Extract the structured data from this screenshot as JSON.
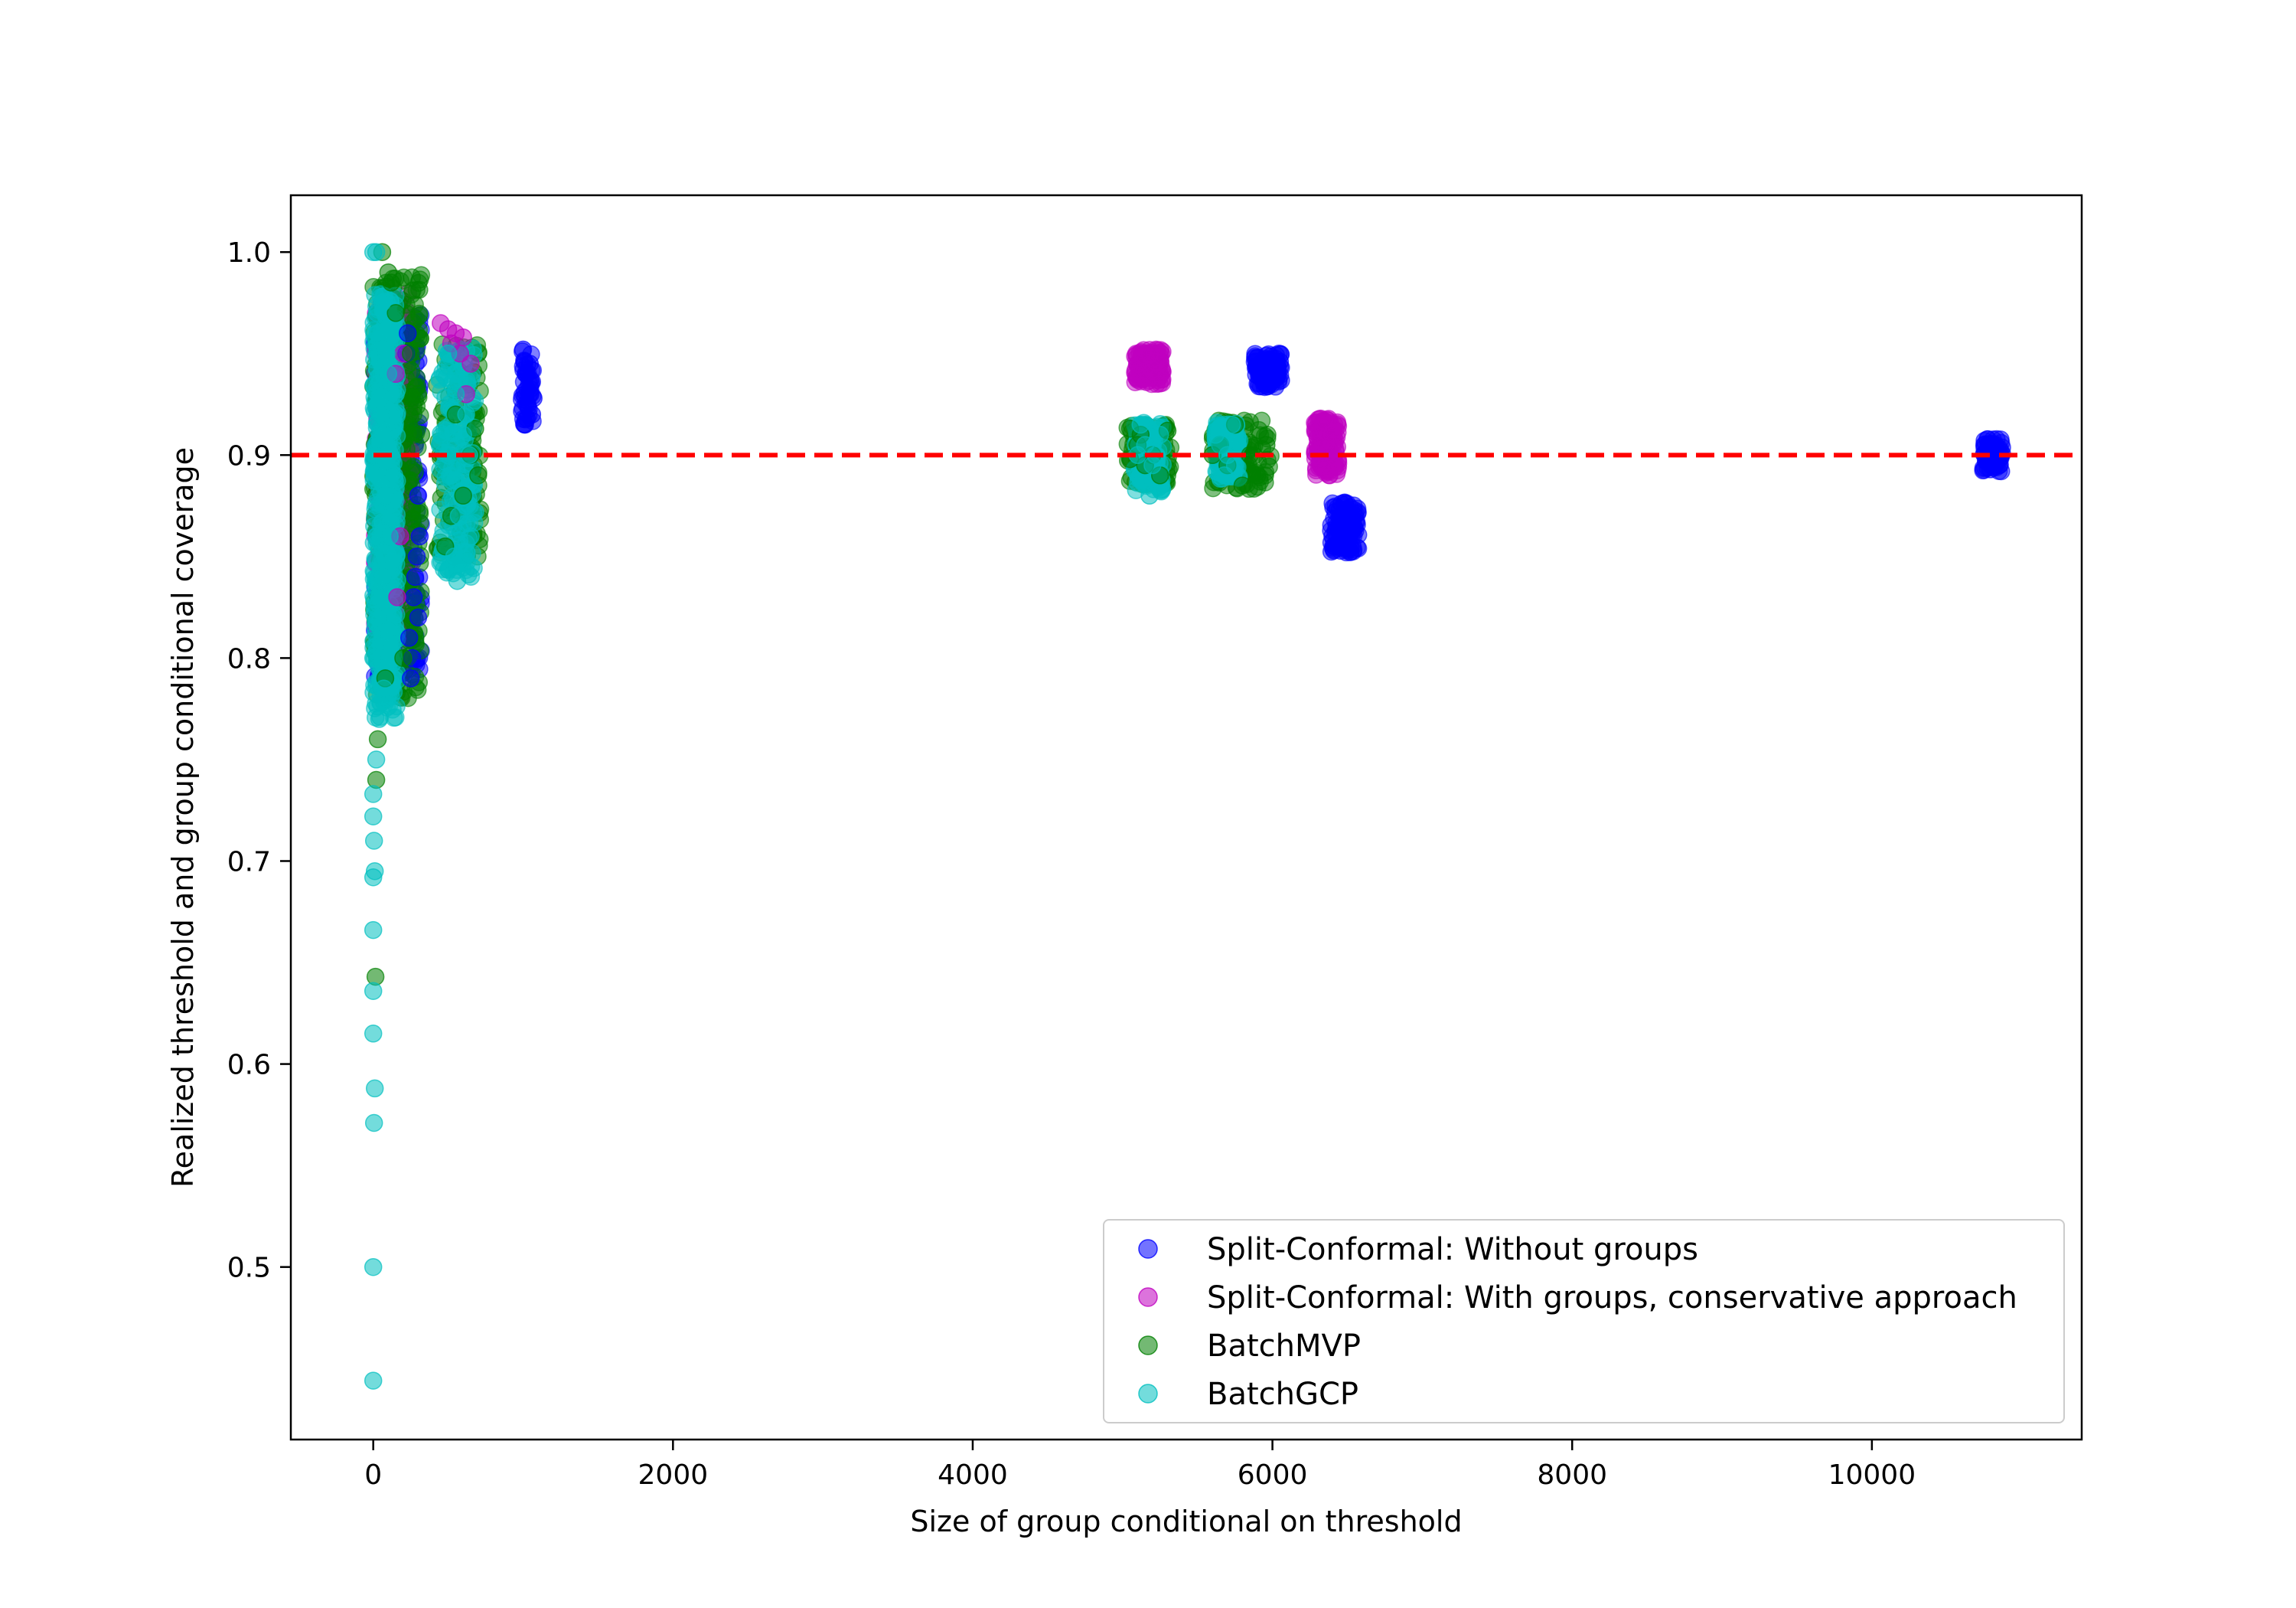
{
  "chart_data": {
    "type": "scatter",
    "xlabel": "Size of group conditional on threshold",
    "ylabel": "Realized threshold and group conditional coverage",
    "xlim": [
      -550,
      11400
    ],
    "ylim": [
      0.415,
      1.028
    ],
    "xticks": [
      0,
      2000,
      4000,
      6000,
      8000,
      10000
    ],
    "yticks": [
      0.5,
      0.6,
      0.7,
      0.8,
      0.9,
      1.0
    ],
    "xtick_labels": [
      "0",
      "2000",
      "4000",
      "6000",
      "8000",
      "10000"
    ],
    "ytick_labels": [
      "0.5",
      "0.6",
      "0.7",
      "0.8",
      "0.9",
      "1.0"
    ],
    "grid": false,
    "legend_position": "lower-right",
    "reference_line": {
      "y": 0.9,
      "color": "#ff0000",
      "style": "dashed"
    },
    "series": [
      {
        "name": "Split-Conformal: Without groups",
        "color": "#0000ff",
        "points": [
          [
            1000,
            0.952
          ],
          [
            1020,
            0.94
          ],
          [
            1040,
            0.935
          ],
          [
            1050,
            0.93
          ],
          [
            1030,
            0.925
          ],
          [
            1060,
            0.92
          ],
          [
            1010,
            0.915
          ],
          [
            1045,
            0.945
          ],
          [
            1070,
            0.928
          ],
          [
            1025,
            0.918
          ],
          [
            5900,
            0.948
          ],
          [
            5950,
            0.945
          ],
          [
            6000,
            0.942
          ],
          [
            6050,
            0.946
          ],
          [
            5920,
            0.94
          ],
          [
            5980,
            0.935
          ],
          [
            6030,
            0.944
          ],
          [
            5960,
            0.949
          ],
          [
            6010,
            0.938
          ],
          [
            6400,
            0.86
          ],
          [
            6450,
            0.865
          ],
          [
            6500,
            0.855
          ],
          [
            6550,
            0.87
          ],
          [
            6420,
            0.872
          ],
          [
            6480,
            0.858
          ],
          [
            6530,
            0.862
          ],
          [
            6460,
            0.876
          ],
          [
            6410,
            0.853
          ],
          [
            10750,
            0.905
          ],
          [
            10800,
            0.9
          ],
          [
            10850,
            0.895
          ],
          [
            10780,
            0.902
          ],
          [
            10820,
            0.898
          ],
          [
            10760,
            0.897
          ],
          [
            10830,
            0.903
          ],
          [
            10790,
            0.893
          ],
          [
            280,
            0.84
          ],
          [
            300,
            0.82
          ],
          [
            260,
            0.8
          ],
          [
            250,
            0.79
          ],
          [
            240,
            0.81
          ],
          [
            310,
            0.86
          ],
          [
            270,
            0.83
          ],
          [
            290,
            0.85
          ],
          [
            230,
            0.96
          ],
          [
            220,
            0.95
          ],
          [
            300,
            0.88
          ]
        ]
      },
      {
        "name": "Split-Conformal: With groups, conservative approach",
        "color": "#c000c0",
        "points": [
          [
            5100,
            0.945
          ],
          [
            5150,
            0.948
          ],
          [
            5200,
            0.942
          ],
          [
            5250,
            0.94
          ],
          [
            5180,
            0.95
          ],
          [
            5130,
            0.938
          ],
          [
            5220,
            0.946
          ],
          [
            5160,
            0.936
          ],
          [
            6300,
            0.905
          ],
          [
            6350,
            0.9
          ],
          [
            6400,
            0.91
          ],
          [
            6320,
            0.895
          ],
          [
            6380,
            0.902
          ],
          [
            6340,
            0.917
          ],
          [
            6360,
            0.892
          ],
          [
            6420,
            0.903
          ],
          [
            450,
            0.965
          ],
          [
            500,
            0.962
          ],
          [
            550,
            0.96
          ],
          [
            600,
            0.958
          ],
          [
            650,
            0.945
          ],
          [
            520,
            0.955
          ],
          [
            580,
            0.95
          ],
          [
            620,
            0.93
          ],
          [
            200,
            0.95
          ],
          [
            150,
            0.94
          ],
          [
            180,
            0.86
          ],
          [
            160,
            0.83
          ]
        ]
      },
      {
        "name": "BatchMVP",
        "color": "#008000",
        "points": [
          [
            5050,
            0.913
          ],
          [
            5100,
            0.905
          ],
          [
            5150,
            0.895
          ],
          [
            5200,
            0.9
          ],
          [
            5250,
            0.89
          ],
          [
            5300,
            0.912
          ],
          [
            5050,
            0.898
          ],
          [
            5120,
            0.91
          ],
          [
            5650,
            0.905
          ],
          [
            5700,
            0.895
          ],
          [
            5750,
            0.915
          ],
          [
            5800,
            0.885
          ],
          [
            5850,
            0.9
          ],
          [
            5900,
            0.89
          ],
          [
            5960,
            0.905
          ],
          [
            5600,
            0.9
          ],
          [
            700,
            0.89
          ],
          [
            680,
            0.913
          ],
          [
            650,
            0.9
          ],
          [
            600,
            0.88
          ],
          [
            550,
            0.92
          ],
          [
            480,
            0.855
          ],
          [
            520,
            0.87
          ],
          [
            20,
            0.74
          ],
          [
            15,
            0.643
          ],
          [
            100,
            0.99
          ],
          [
            120,
            0.985
          ],
          [
            60,
            1.0
          ],
          [
            200,
            0.8
          ],
          [
            300,
            0.93
          ],
          [
            320,
            0.91
          ],
          [
            250,
            0.95
          ],
          [
            150,
            0.97
          ],
          [
            80,
            0.79
          ],
          [
            30,
            0.76
          ]
        ]
      },
      {
        "name": "BatchGCP",
        "color": "#00bfbf",
        "points": [
          [
            0,
            0.444
          ],
          [
            0,
            0.5
          ],
          [
            5,
            0.571
          ],
          [
            10,
            0.588
          ],
          [
            0,
            0.615
          ],
          [
            0,
            0.636
          ],
          [
            0,
            0.666
          ],
          [
            0,
            0.692
          ],
          [
            10,
            0.695
          ],
          [
            5,
            0.71
          ],
          [
            0,
            0.722
          ],
          [
            0,
            0.733
          ],
          [
            20,
            0.75
          ],
          [
            40,
            0.77
          ],
          [
            70,
            0.785
          ],
          [
            0,
            0.8
          ],
          [
            30,
            0.82
          ],
          [
            60,
            0.84
          ],
          [
            20,
            0.86
          ],
          [
            80,
            0.88
          ],
          [
            10,
            0.9
          ],
          [
            50,
            0.92
          ],
          [
            100,
            0.94
          ],
          [
            30,
            0.96
          ],
          [
            60,
            0.975
          ],
          [
            0,
            1.0
          ],
          [
            20,
            1.0
          ],
          [
            120,
            0.87
          ],
          [
            150,
            0.93
          ],
          [
            90,
            0.95
          ],
          [
            140,
            0.89
          ],
          [
            40,
            0.83
          ],
          [
            70,
            0.91
          ],
          [
            110,
            0.86
          ],
          [
            25,
            0.97
          ],
          [
            500,
            0.95
          ],
          [
            550,
            0.93
          ],
          [
            600,
            0.91
          ],
          [
            520,
            0.89
          ],
          [
            570,
            0.87
          ],
          [
            540,
            0.85
          ],
          [
            560,
            0.838
          ],
          [
            650,
            0.86
          ],
          [
            640,
            0.9
          ],
          [
            620,
            0.92
          ],
          [
            680,
            0.872
          ],
          [
            5100,
            0.9
          ],
          [
            5150,
            0.905
          ],
          [
            5200,
            0.895
          ],
          [
            5250,
            0.91
          ],
          [
            5180,
            0.88
          ],
          [
            5120,
            0.915
          ],
          [
            5220,
            0.9
          ],
          [
            5650,
            0.905
          ],
          [
            5700,
            0.9
          ],
          [
            5750,
            0.895
          ],
          [
            5620,
            0.91
          ],
          [
            5680,
            0.89
          ],
          [
            5730,
            0.915
          ]
        ]
      }
    ]
  }
}
